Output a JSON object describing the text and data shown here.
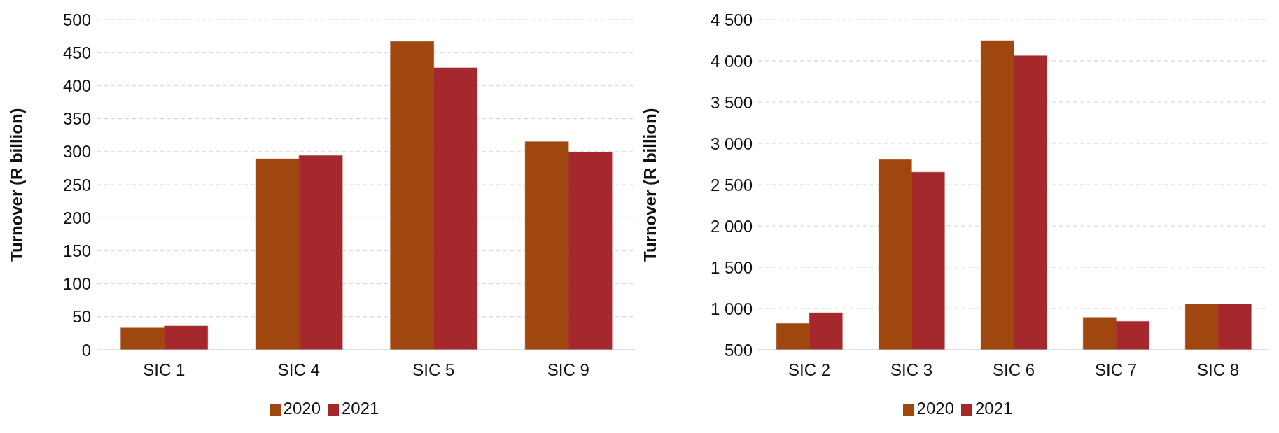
{
  "chart_data": [
    {
      "type": "bar",
      "ylabel": "Turnover (R billion)",
      "categories": [
        "SIC 1",
        "SIC 4",
        "SIC 5",
        "SIC 9"
      ],
      "series": [
        {
          "name": "2020",
          "color": "#a0460f",
          "values": [
            33,
            289,
            467,
            315
          ]
        },
        {
          "name": "2021",
          "color": "#a5282d",
          "values": [
            36,
            294,
            427,
            299
          ]
        }
      ],
      "ylim": [
        0,
        500
      ],
      "yticks": [
        0,
        50,
        100,
        150,
        200,
        250,
        300,
        350,
        400,
        450,
        500
      ],
      "grid": "y",
      "legend": "bottom"
    },
    {
      "type": "bar",
      "ylabel": "Turnover (R billion)",
      "categories": [
        "SIC 2",
        "SIC 3",
        "SIC 6",
        "SIC 7",
        "SIC 8"
      ],
      "series": [
        {
          "name": "2020",
          "color": "#a0460f",
          "values": [
            818,
            2802,
            4245,
            891,
            1052
          ]
        },
        {
          "name": "2021",
          "color": "#a5282d",
          "values": [
            948,
            2651,
            4062,
            844,
            1052
          ]
        }
      ],
      "ylim": [
        500,
        4500
      ],
      "yticks": [
        500,
        {
          "value": 1000,
          "label": "1 000"
        },
        {
          "value": 1500,
          "label": "1 500"
        },
        {
          "value": 2000,
          "label": "2 000"
        },
        {
          "value": 2500,
          "label": "2 500"
        },
        {
          "value": 3000,
          "label": "3 000"
        },
        {
          "value": 3500,
          "label": "3 500"
        },
        {
          "value": 4000,
          "label": "4 000"
        },
        {
          "value": 4500,
          "label": "4 500"
        }
      ],
      "grid": "y",
      "legend": "bottom"
    }
  ]
}
